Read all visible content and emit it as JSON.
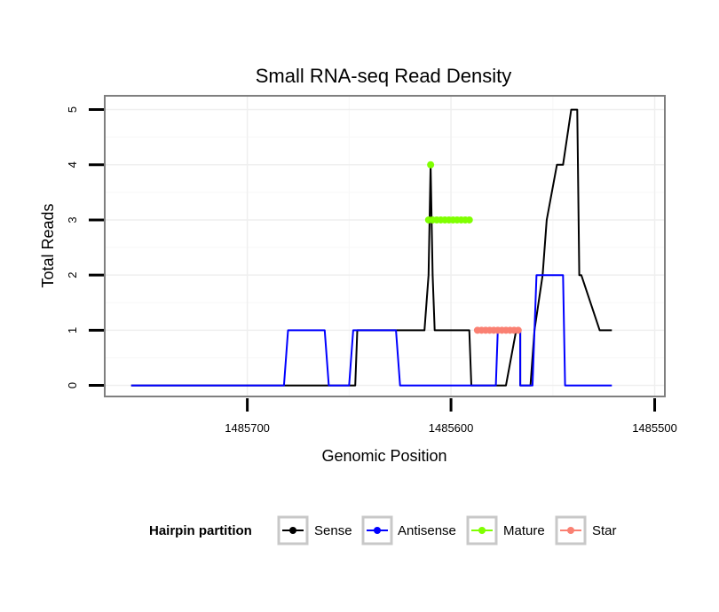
{
  "chart_data": {
    "type": "line",
    "title": "Small RNA-seq Read Density",
    "xlabel": "Genomic Position",
    "ylabel": "Total Reads",
    "xlim": [
      1485770,
      1485495
    ],
    "ylim": [
      -0.2,
      5.25
    ],
    "x_reversed": true,
    "x_ticks": [
      1485700,
      1485600,
      1485500
    ],
    "x_tick_labels": [
      "1485700",
      "1485600",
      "1485500"
    ],
    "y_ticks": [
      0,
      1,
      2,
      3,
      4,
      5
    ],
    "y_tick_labels": [
      "0",
      "1",
      "2",
      "3",
      "4",
      "5"
    ],
    "grid": true,
    "legend": {
      "title": "Hairpin partition",
      "position": "bottom",
      "entries": [
        "Sense",
        "Antisense",
        "Mature",
        "Star"
      ]
    },
    "series": [
      {
        "name": "Sense",
        "color": "#000000",
        "style": "line",
        "x": [
          1485757,
          1485647,
          1485646,
          1485630,
          1485628,
          1485613,
          1485611,
          1485610,
          1485609,
          1485608,
          1485593,
          1485592,
          1485591,
          1485590,
          1485589,
          1485587,
          1485573,
          1485568,
          1485567,
          1485566,
          1485566,
          1485565,
          1485563,
          1485561,
          1485559,
          1485555,
          1485555,
          1485553,
          1485548,
          1485545,
          1485541,
          1485540,
          1485538,
          1485537,
          1485536,
          1485527,
          1485521
        ],
        "values": [
          0,
          0,
          1,
          1,
          1,
          1,
          2,
          4,
          2,
          1,
          1,
          1,
          1,
          0,
          0,
          0,
          0,
          1,
          1,
          1,
          0,
          0,
          0,
          0,
          1,
          2,
          2,
          3,
          4,
          4,
          5,
          5,
          5,
          2,
          2,
          1,
          1
        ]
      },
      {
        "name": "Antisense",
        "color": "#0000ff",
        "style": "line",
        "x": [
          1485757,
          1485682,
          1485680,
          1485662,
          1485660,
          1485650,
          1485648,
          1485627,
          1485625,
          1485601,
          1485599,
          1485588,
          1485587,
          1485578,
          1485577,
          1485566,
          1485566,
          1485560,
          1485558,
          1485545,
          1485544,
          1485521
        ],
        "values": [
          0,
          0,
          1,
          1,
          0,
          0,
          1,
          1,
          0,
          0,
          0,
          0,
          0,
          0,
          1,
          1,
          0,
          0,
          2,
          2,
          0,
          0
        ]
      },
      {
        "name": "Mature",
        "color": "#7fff00",
        "style": "points",
        "x": [
          1485610,
          1485611,
          1485609,
          1485607,
          1485605,
          1485603,
          1485601,
          1485599,
          1485597,
          1485595,
          1485593,
          1485591
        ],
        "values": [
          4,
          3,
          3,
          3,
          3,
          3,
          3,
          3,
          3,
          3,
          3,
          3
        ]
      },
      {
        "name": "Star",
        "color": "#fa8072",
        "style": "points",
        "x": [
          1485587,
          1485585,
          1485583,
          1485581,
          1485579,
          1485577,
          1485575,
          1485573,
          1485571,
          1485569,
          1485567
        ],
        "values": [
          1,
          1,
          1,
          1,
          1,
          1,
          1,
          1,
          1,
          1,
          1
        ]
      }
    ]
  }
}
